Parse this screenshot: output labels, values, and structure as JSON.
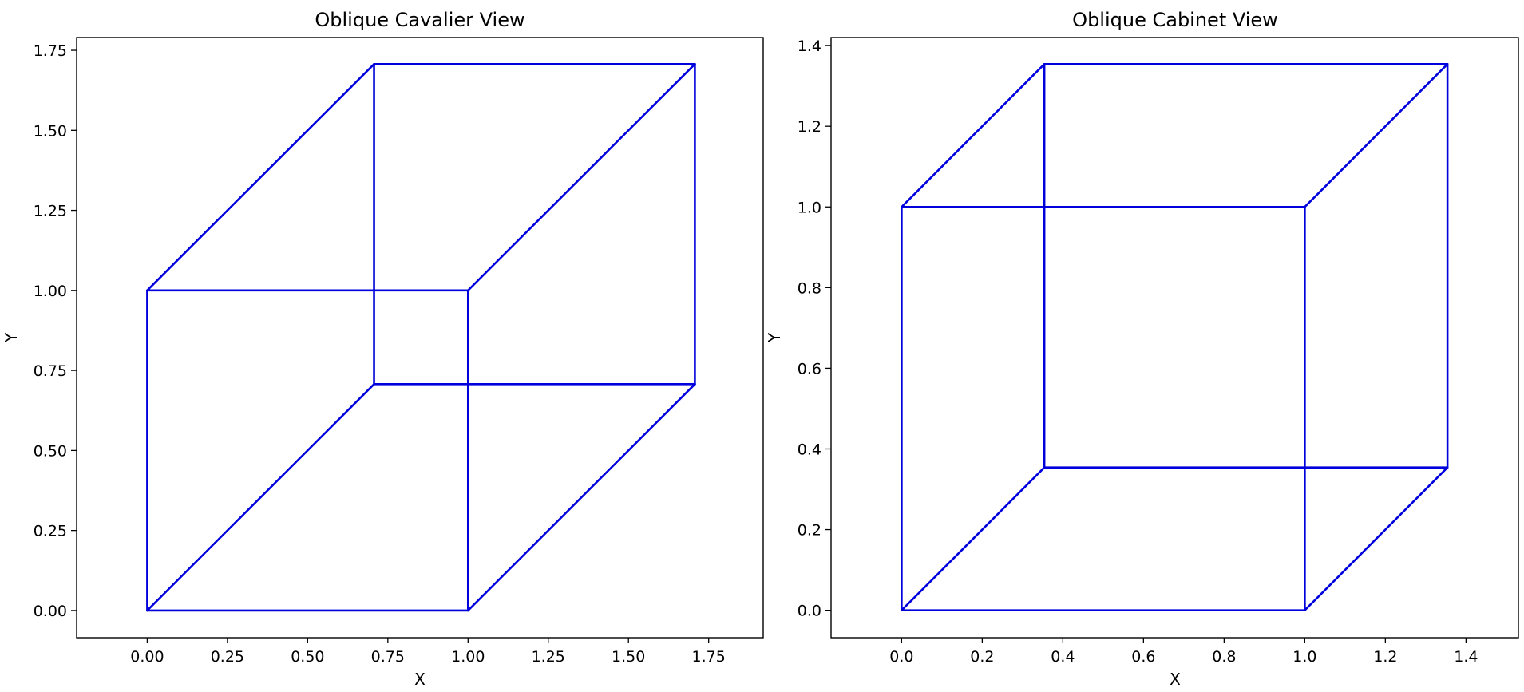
{
  "chart_data": [
    {
      "type": "line",
      "title": "Oblique Cavalier View",
      "xlabel": "X",
      "ylabel": "Y",
      "xlim": [
        -0.22,
        1.92
      ],
      "ylim": [
        -0.085,
        1.79
      ],
      "xticks": [
        0.0,
        0.25,
        0.5,
        0.75,
        1.0,
        1.25,
        1.5,
        1.75
      ],
      "xtick_labels": [
        "0.00",
        "0.25",
        "0.50",
        "0.75",
        "1.00",
        "1.25",
        "1.50",
        "1.75"
      ],
      "yticks": [
        0.0,
        0.25,
        0.5,
        0.75,
        1.0,
        1.25,
        1.5,
        1.75
      ],
      "ytick_labels": [
        "0.00",
        "0.25",
        "0.50",
        "0.75",
        "1.00",
        "1.25",
        "1.50",
        "1.75"
      ],
      "grid": false,
      "color": "#0000dd",
      "segments": [
        [
          [
            0,
            0
          ],
          [
            1,
            0
          ]
        ],
        [
          [
            1,
            0
          ],
          [
            1,
            1
          ]
        ],
        [
          [
            1,
            1
          ],
          [
            0,
            1
          ]
        ],
        [
          [
            0,
            1
          ],
          [
            0,
            0
          ]
        ],
        [
          [
            0.707,
            0.707
          ],
          [
            1.707,
            0.707
          ]
        ],
        [
          [
            1.707,
            0.707
          ],
          [
            1.707,
            1.707
          ]
        ],
        [
          [
            1.707,
            1.707
          ],
          [
            0.707,
            1.707
          ]
        ],
        [
          [
            0.707,
            1.707
          ],
          [
            0.707,
            0.707
          ]
        ],
        [
          [
            0,
            0
          ],
          [
            0.707,
            0.707
          ]
        ],
        [
          [
            1,
            0
          ],
          [
            1.707,
            0.707
          ]
        ],
        [
          [
            1,
            1
          ],
          [
            1.707,
            1.707
          ]
        ],
        [
          [
            0,
            1
          ],
          [
            0.707,
            1.707
          ]
        ]
      ]
    },
    {
      "type": "line",
      "title": "Oblique Cabinet View",
      "xlabel": "X",
      "ylabel": "Y",
      "xlim": [
        -0.175,
        1.53
      ],
      "ylim": [
        -0.068,
        1.42
      ],
      "xticks": [
        0.0,
        0.2,
        0.4,
        0.6,
        0.8,
        1.0,
        1.2,
        1.4
      ],
      "xtick_labels": [
        "0.0",
        "0.2",
        "0.4",
        "0.6",
        "0.8",
        "1.0",
        "1.2",
        "1.4"
      ],
      "yticks": [
        0.0,
        0.2,
        0.4,
        0.6,
        0.8,
        1.0,
        1.2,
        1.4
      ],
      "ytick_labels": [
        "0.0",
        "0.2",
        "0.4",
        "0.6",
        "0.8",
        "1.0",
        "1.2",
        "1.4"
      ],
      "grid": false,
      "color": "#0000dd",
      "segments": [
        [
          [
            0,
            0
          ],
          [
            1,
            0
          ]
        ],
        [
          [
            1,
            0
          ],
          [
            1,
            1
          ]
        ],
        [
          [
            1,
            1
          ],
          [
            0,
            1
          ]
        ],
        [
          [
            0,
            1
          ],
          [
            0,
            0
          ]
        ],
        [
          [
            0.354,
            0.354
          ],
          [
            1.354,
            0.354
          ]
        ],
        [
          [
            1.354,
            0.354
          ],
          [
            1.354,
            1.354
          ]
        ],
        [
          [
            1.354,
            1.354
          ],
          [
            0.354,
            1.354
          ]
        ],
        [
          [
            0.354,
            1.354
          ],
          [
            0.354,
            0.354
          ]
        ],
        [
          [
            0,
            0
          ],
          [
            0.354,
            0.354
          ]
        ],
        [
          [
            1,
            0
          ],
          [
            1.354,
            0.354
          ]
        ],
        [
          [
            1,
            1
          ],
          [
            1.354,
            1.354
          ]
        ],
        [
          [
            0,
            1
          ],
          [
            0.354,
            1.354
          ]
        ]
      ]
    }
  ]
}
